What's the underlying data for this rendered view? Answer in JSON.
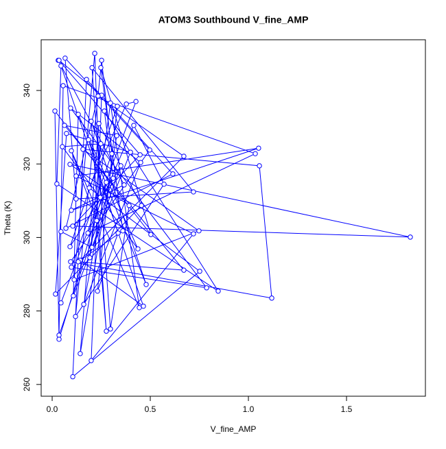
{
  "chart_data": {
    "type": "line",
    "title": "ATOM3 Southbound V_fine_AMP",
    "x_label": "V_fine_AMP",
    "y_label": "Theta (K)",
    "marker": "open-circle",
    "x": [
      0.031,
      0.367,
      0.098,
      1.052,
      0.122,
      0.72,
      0.199,
      0.252,
      0.035,
      0.448,
      0.105,
      1.825,
      0.091,
      0.392,
      0.297,
      0.203,
      0.72,
      0.122,
      0.066,
      0.497,
      0.094,
      1.119,
      1.056,
      0.157,
      0.748,
      0.112,
      0.217,
      0.245,
      0.045,
      0.427,
      0.378,
      0.189,
      0.752,
      0.105,
      0.175,
      0.615,
      0.07,
      0.234,
      0.671,
      0.143,
      0.465,
      0.045,
      0.024,
      0.846,
      0.266,
      0.311,
      0.035,
      0.056,
      1.035,
      0.182,
      0.416,
      0.57,
      0.119,
      0.252,
      0.304,
      0.098,
      0.787,
      0.094,
      0.451,
      0.161,
      0.276,
      0.035,
      0.014,
      0.503,
      0.248,
      0.36,
      0.133,
      0.671,
      0.063,
      0.329,
      0.143,
      0.238,
      0.455,
      0.017,
      0.073,
      0.399,
      0.108,
      0.133,
      0.437,
      0.052,
      0.248,
      0.192,
      0.297,
      0.444,
      0.098,
      0.227,
      0.276,
      0.199,
      0.479,
      0.185,
      0.336,
      0.231,
      0.332,
      0.091,
      0.35,
      0.203,
      0.045
    ],
    "series": [
      {
        "color": "#0000ff",
        "values": [
          348.2,
          314.3,
          307.4,
          324.3,
          316.7,
          301.0,
          266.5,
          338.7,
          348.2,
          322.5,
          303.1,
          300.1,
          319.9,
          308.7,
          275.1,
          346.2,
          312.4,
          310.5,
          348.8,
          323.8,
          293.4,
          283.5,
          319.5,
          324.0,
          301.8,
          288.5,
          350.1,
          310.9,
          282.2,
          337.0,
          336.3,
          313.5,
          290.8,
          262.1,
          343.0,
          317.3,
          302.5,
          338.5,
          322.1,
          293.8,
          281.3,
          346.7,
          314.6,
          285.4,
          334.4,
          316.1,
          273.4,
          341.3,
          322.8,
          301.2,
          330.5,
          314.5,
          278.5,
          348.2,
          322.8,
          291.9,
          286.3,
          335.2,
          320.4,
          281.8,
          315.0,
          272.3,
          334.4,
          300.8,
          346.2,
          301.8,
          293.4,
          291.1,
          330.5,
          327.7,
          268.4,
          331.0,
          308.7,
          284.6,
          328.3,
          323.2,
          284.1,
          333.5,
          296.9,
          324.7,
          325.5,
          294.5,
          336.6,
          280.9,
          323.6,
          304.6,
          274.5,
          331.6,
          287.2,
          326.6,
          301.2,
          285.4,
          335.7,
          297.5,
          319.5,
          297.3,
          301.6
        ]
      }
    ],
    "xlim": [
      -0.056,
      1.902
    ],
    "ylim": [
      256.8,
      353.8
    ],
    "xticks": [
      {
        "value": 0,
        "label": "0.0"
      },
      0.5,
      {
        "value": 1,
        "label": "1.0"
      },
      1.5
    ],
    "yticks": [
      260,
      280,
      300,
      320,
      340
    ]
  }
}
